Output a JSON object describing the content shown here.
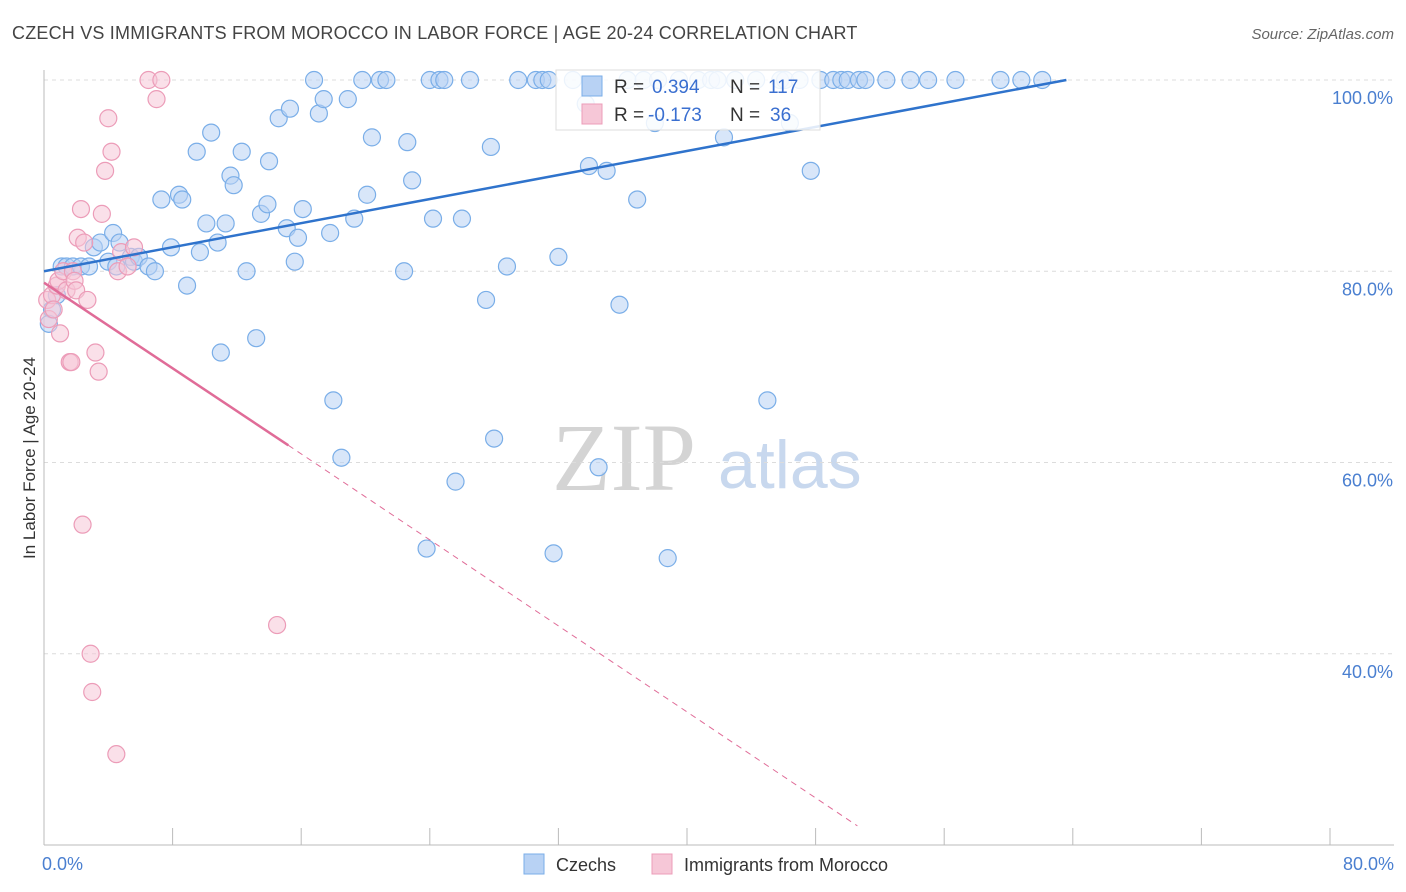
{
  "chart_data": {
    "type": "scatter",
    "title": "CZECH VS IMMIGRANTS FROM MOROCCO IN LABOR FORCE | AGE 20-24 CORRELATION CHART",
    "source": "Source: ZipAtlas.com",
    "ylabel": "In Labor Force | Age 20-24",
    "xlim": [
      0,
      80
    ],
    "ylim": [
      20,
      104
    ],
    "x_tick_labels": [
      "0.0%",
      "80.0%"
    ],
    "y_ticks": [
      40,
      60,
      80,
      100
    ],
    "y_tick_labels": [
      "40.0%",
      "60.0%",
      "80.0%",
      "100.0%"
    ],
    "grid": true,
    "watermark": {
      "zip": "ZIP",
      "atlas": "atlas"
    },
    "legend_box": {
      "rows": [
        {
          "r_label": "R =",
          "r_value": "0.394",
          "n_label": "N =",
          "n_value": "117",
          "series": "Czechs"
        },
        {
          "r_label": "R =",
          "r_value": "-0.173",
          "n_label": "N =",
          "n_value": "36",
          "series": "Immigrants from Morocco"
        }
      ]
    },
    "series": [
      {
        "name": "Czechs",
        "color": "#7aaee8",
        "fill": "#b8d2f4",
        "line_color": "#2f73cc",
        "trend": {
          "x0": 0,
          "y0": 80.0,
          "x1": 63.6,
          "y1": 100.0,
          "dashed_to": null
        },
        "points": [
          [
            0.5,
            76
          ],
          [
            0.3,
            74.5
          ],
          [
            0.8,
            77.5
          ],
          [
            1.1,
            80.5
          ],
          [
            1.4,
            80.5
          ],
          [
            1.8,
            80.5
          ],
          [
            2.3,
            80.5
          ],
          [
            2.8,
            80.5
          ],
          [
            3.1,
            82.5
          ],
          [
            3.5,
            83
          ],
          [
            4.0,
            81
          ],
          [
            4.3,
            84
          ],
          [
            4.5,
            80.5
          ],
          [
            4.7,
            83
          ],
          [
            5.4,
            81.5
          ],
          [
            5.6,
            81
          ],
          [
            5.9,
            81.5
          ],
          [
            6.5,
            80.5
          ],
          [
            6.9,
            80
          ],
          [
            7.3,
            87.5
          ],
          [
            7.9,
            82.5
          ],
          [
            8.4,
            88
          ],
          [
            8.6,
            87.5
          ],
          [
            8.9,
            78.5
          ],
          [
            9.5,
            92.5
          ],
          [
            9.7,
            82
          ],
          [
            10.1,
            85
          ],
          [
            10.4,
            94.5
          ],
          [
            10.8,
            83
          ],
          [
            11.0,
            71.5
          ],
          [
            11.3,
            85
          ],
          [
            11.6,
            90
          ],
          [
            11.8,
            89
          ],
          [
            12.3,
            92.5
          ],
          [
            12.6,
            80
          ],
          [
            13.2,
            73
          ],
          [
            13.5,
            86
          ],
          [
            13.9,
            87
          ],
          [
            14.0,
            91.5
          ],
          [
            14.6,
            96
          ],
          [
            15.1,
            84.5
          ],
          [
            15.3,
            97
          ],
          [
            15.6,
            81
          ],
          [
            15.8,
            83.5
          ],
          [
            16.1,
            86.5
          ],
          [
            16.8,
            100
          ],
          [
            17.1,
            96.5
          ],
          [
            17.4,
            98
          ],
          [
            17.8,
            84
          ],
          [
            18.0,
            66.5
          ],
          [
            18.5,
            60.5
          ],
          [
            18.9,
            98
          ],
          [
            19.3,
            85.5
          ],
          [
            19.8,
            100
          ],
          [
            20.1,
            88
          ],
          [
            20.4,
            94
          ],
          [
            20.9,
            100
          ],
          [
            21.3,
            100
          ],
          [
            22.4,
            80
          ],
          [
            22.6,
            93.5
          ],
          [
            22.9,
            89.5
          ],
          [
            23.8,
            51
          ],
          [
            24.0,
            100
          ],
          [
            24.2,
            85.5
          ],
          [
            24.6,
            100
          ],
          [
            24.9,
            100
          ],
          [
            25.6,
            58
          ],
          [
            26.0,
            85.5
          ],
          [
            26.5,
            100
          ],
          [
            27.5,
            77
          ],
          [
            27.8,
            93
          ],
          [
            28.0,
            62.5
          ],
          [
            28.8,
            80.5
          ],
          [
            29.5,
            100
          ],
          [
            30.6,
            100
          ],
          [
            31.0,
            100
          ],
          [
            31.4,
            100
          ],
          [
            31.7,
            50.5
          ],
          [
            32.0,
            81.5
          ],
          [
            32.9,
            100
          ],
          [
            33.7,
            97.5
          ],
          [
            33.9,
            91
          ],
          [
            34.5,
            59.5
          ],
          [
            35.0,
            90.5
          ],
          [
            35.8,
            76.5
          ],
          [
            36.3,
            100
          ],
          [
            36.9,
            87.5
          ],
          [
            37.3,
            100
          ],
          [
            38.0,
            95.5
          ],
          [
            38.2,
            100
          ],
          [
            38.8,
            50
          ],
          [
            39.5,
            100
          ],
          [
            40.7,
            100
          ],
          [
            41.5,
            100
          ],
          [
            41.9,
            100
          ],
          [
            42.3,
            94
          ],
          [
            43.0,
            100
          ],
          [
            44.3,
            100
          ],
          [
            45.0,
            66.5
          ],
          [
            45.8,
            100
          ],
          [
            46.1,
            100
          ],
          [
            46.4,
            95.5
          ],
          [
            47.0,
            100
          ],
          [
            47.7,
            90.5
          ],
          [
            48.3,
            100
          ],
          [
            49.1,
            100
          ],
          [
            49.6,
            100
          ],
          [
            50.0,
            100
          ],
          [
            50.7,
            100
          ],
          [
            51.1,
            100
          ],
          [
            52.4,
            100
          ],
          [
            53.9,
            100
          ],
          [
            55.0,
            100
          ],
          [
            56.7,
            100
          ],
          [
            59.5,
            100
          ],
          [
            60.8,
            100
          ],
          [
            62.1,
            100
          ]
        ]
      },
      {
        "name": "Immigrants from Morocco",
        "color": "#ec9cb8",
        "fill": "#f6c7d7",
        "line_color": "#e06c98",
        "trend": {
          "x0": 0,
          "y0": 78.8,
          "x1": 15.2,
          "y1": 61.8,
          "dashed_to": [
            50.6,
            22.0
          ]
        },
        "points": [
          [
            0.2,
            77
          ],
          [
            0.3,
            75
          ],
          [
            0.5,
            77.5
          ],
          [
            0.6,
            76
          ],
          [
            0.8,
            78.5
          ],
          [
            0.9,
            79
          ],
          [
            1.0,
            73.5
          ],
          [
            1.2,
            80
          ],
          [
            1.4,
            78
          ],
          [
            1.6,
            70.5
          ],
          [
            1.7,
            70.5
          ],
          [
            1.8,
            80
          ],
          [
            1.9,
            79
          ],
          [
            2.0,
            78
          ],
          [
            2.1,
            83.5
          ],
          [
            2.3,
            86.5
          ],
          [
            2.4,
            53.5
          ],
          [
            2.5,
            83
          ],
          [
            2.7,
            77
          ],
          [
            2.9,
            40
          ],
          [
            3.0,
            36
          ],
          [
            3.2,
            71.5
          ],
          [
            3.4,
            69.5
          ],
          [
            3.6,
            86
          ],
          [
            3.8,
            90.5
          ],
          [
            4.0,
            96
          ],
          [
            4.2,
            92.5
          ],
          [
            4.5,
            29.5
          ],
          [
            4.6,
            80
          ],
          [
            4.8,
            82
          ],
          [
            5.2,
            80.5
          ],
          [
            5.6,
            82.5
          ],
          [
            6.5,
            100
          ],
          [
            7.0,
            98
          ],
          [
            7.3,
            100
          ],
          [
            14.5,
            43
          ]
        ]
      }
    ]
  }
}
